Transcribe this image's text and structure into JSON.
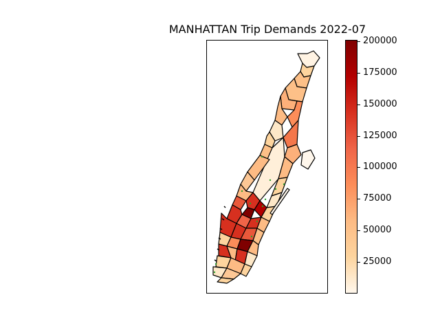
{
  "title": "MANHATTAN Trip Demands 2022-07",
  "colorbar": {
    "colormap": "OrRd",
    "min": 0,
    "max": 201000,
    "ticks": [
      {
        "value": 200000,
        "label": "200000"
      },
      {
        "value": 175000,
        "label": "175000"
      },
      {
        "value": 150000,
        "label": "150000"
      },
      {
        "value": 125000,
        "label": "125000"
      },
      {
        "value": 100000,
        "label": "100000"
      },
      {
        "value": 75000,
        "label": "75000"
      },
      {
        "value": 50000,
        "label": "50000"
      },
      {
        "value": 25000,
        "label": "25000"
      }
    ],
    "stops": [
      "#fff7ec",
      "#fdd49e",
      "#fdbb84",
      "#fc8d59",
      "#ef6548",
      "#d7301f",
      "#b30000",
      "#7f0000"
    ]
  },
  "legend_marker_color": "#2ca02c"
}
